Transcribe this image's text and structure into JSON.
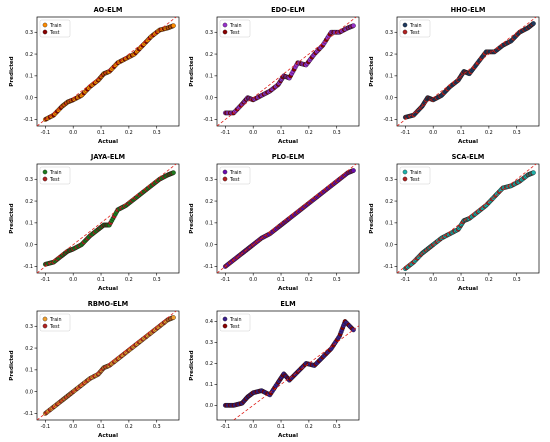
{
  "legend": {
    "train": "Train",
    "test": "Test"
  },
  "chart_data": [
    {
      "type": "scatter",
      "title": "AO-ELM",
      "xlabel": "Actual",
      "ylabel": "Predicted",
      "xlim": [
        -0.13,
        0.38
      ],
      "ylim": [
        -0.13,
        0.37
      ],
      "xticks": [
        -0.1,
        0.0,
        0.1,
        0.2,
        0.3
      ],
      "yticks": [
        -0.1,
        0.0,
        0.1,
        0.2,
        0.3
      ],
      "xtick_labels": [
        "-0.1",
        "0.0",
        "0.1",
        "0.2",
        "0.3"
      ],
      "ytick_labels": [
        "-0.1",
        "0.0",
        "0.1",
        "0.2",
        "0.3"
      ],
      "train_color": "#ff8c00",
      "test_color": "#8b0000",
      "fit_line": true,
      "curve": [
        [
          -0.1,
          -0.1
        ],
        [
          -0.07,
          -0.08
        ],
        [
          -0.04,
          -0.04
        ],
        [
          -0.02,
          -0.02
        ],
        [
          0.0,
          -0.01
        ],
        [
          0.03,
          0.01
        ],
        [
          0.06,
          0.05
        ],
        [
          0.09,
          0.08
        ],
        [
          0.11,
          0.11
        ],
        [
          0.13,
          0.12
        ],
        [
          0.16,
          0.16
        ],
        [
          0.19,
          0.18
        ],
        [
          0.22,
          0.2
        ],
        [
          0.25,
          0.24
        ],
        [
          0.28,
          0.28
        ],
        [
          0.31,
          0.31
        ],
        [
          0.34,
          0.32
        ],
        [
          0.36,
          0.33
        ]
      ]
    },
    {
      "type": "scatter",
      "title": "EDO-ELM",
      "xlabel": "Actual",
      "ylabel": "Predicted",
      "xlim": [
        -0.13,
        0.38
      ],
      "ylim": [
        -0.13,
        0.37
      ],
      "xticks": [
        -0.1,
        0.0,
        0.1,
        0.2,
        0.3
      ],
      "yticks": [
        -0.1,
        0.0,
        0.1,
        0.2,
        0.3
      ],
      "xtick_labels": [
        "-0.1",
        "0.0",
        "0.1",
        "0.2",
        "0.3"
      ],
      "ytick_labels": [
        "-0.1",
        "0.0",
        "0.1",
        "0.2",
        "0.3"
      ],
      "train_color": "#9932cc",
      "test_color": "#8b0000",
      "fit_line": true,
      "curve": [
        [
          -0.1,
          -0.07
        ],
        [
          -0.07,
          -0.07
        ],
        [
          -0.04,
          -0.03
        ],
        [
          -0.02,
          0.0
        ],
        [
          0.0,
          -0.01
        ],
        [
          0.03,
          0.01
        ],
        [
          0.06,
          0.03
        ],
        [
          0.09,
          0.06
        ],
        [
          0.11,
          0.1
        ],
        [
          0.13,
          0.09
        ],
        [
          0.16,
          0.16
        ],
        [
          0.19,
          0.15
        ],
        [
          0.22,
          0.2
        ],
        [
          0.25,
          0.24
        ],
        [
          0.28,
          0.3
        ],
        [
          0.31,
          0.3
        ],
        [
          0.34,
          0.32
        ],
        [
          0.36,
          0.33
        ]
      ]
    },
    {
      "type": "scatter",
      "title": "HHO-ELM",
      "xlabel": "Actual",
      "ylabel": "Predicted",
      "xlim": [
        -0.13,
        0.38
      ],
      "ylim": [
        -0.13,
        0.37
      ],
      "xticks": [
        -0.1,
        0.0,
        0.1,
        0.2,
        0.3
      ],
      "yticks": [
        -0.1,
        0.0,
        0.1,
        0.2,
        0.3
      ],
      "xtick_labels": [
        "-0.1",
        "0.0",
        "0.1",
        "0.2",
        "0.3"
      ],
      "ytick_labels": [
        "-0.1",
        "0.0",
        "0.1",
        "0.2",
        "0.3"
      ],
      "train_color": "#1f3a5f",
      "test_color": "#b22222",
      "fit_line": true,
      "curve": [
        [
          -0.1,
          -0.09
        ],
        [
          -0.07,
          -0.08
        ],
        [
          -0.04,
          -0.04
        ],
        [
          -0.02,
          0.0
        ],
        [
          0.0,
          -0.01
        ],
        [
          0.03,
          0.01
        ],
        [
          0.06,
          0.05
        ],
        [
          0.09,
          0.08
        ],
        [
          0.11,
          0.12
        ],
        [
          0.13,
          0.11
        ],
        [
          0.16,
          0.16
        ],
        [
          0.19,
          0.21
        ],
        [
          0.22,
          0.21
        ],
        [
          0.25,
          0.24
        ],
        [
          0.28,
          0.26
        ],
        [
          0.31,
          0.3
        ],
        [
          0.34,
          0.32
        ],
        [
          0.36,
          0.34
        ]
      ]
    },
    {
      "type": "scatter",
      "title": "JAYA-ELM",
      "xlabel": "Actual",
      "ylabel": "Predicted",
      "xlim": [
        -0.13,
        0.38
      ],
      "ylim": [
        -0.13,
        0.37
      ],
      "xticks": [
        -0.1,
        0.0,
        0.1,
        0.2,
        0.3
      ],
      "yticks": [
        -0.1,
        0.0,
        0.1,
        0.2,
        0.3
      ],
      "xtick_labels": [
        "-0.1",
        "0.0",
        "0.1",
        "0.2",
        "0.3"
      ],
      "ytick_labels": [
        "-0.1",
        "0.0",
        "0.1",
        "0.2",
        "0.3"
      ],
      "train_color": "#1e7b1e",
      "test_color": "#b22222",
      "fit_line": true,
      "curve": [
        [
          -0.1,
          -0.09
        ],
        [
          -0.07,
          -0.08
        ],
        [
          -0.04,
          -0.05
        ],
        [
          -0.02,
          -0.03
        ],
        [
          0.0,
          -0.02
        ],
        [
          0.03,
          0.0
        ],
        [
          0.06,
          0.04
        ],
        [
          0.09,
          0.07
        ],
        [
          0.11,
          0.09
        ],
        [
          0.13,
          0.09
        ],
        [
          0.16,
          0.16
        ],
        [
          0.19,
          0.18
        ],
        [
          0.22,
          0.21
        ],
        [
          0.25,
          0.24
        ],
        [
          0.28,
          0.27
        ],
        [
          0.31,
          0.3
        ],
        [
          0.34,
          0.32
        ],
        [
          0.36,
          0.33
        ]
      ]
    },
    {
      "type": "scatter",
      "title": "PLO-ELM",
      "xlabel": "Actual",
      "ylabel": "Predicted",
      "xlim": [
        -0.13,
        0.38
      ],
      "ylim": [
        -0.13,
        0.37
      ],
      "xticks": [
        -0.1,
        0.0,
        0.1,
        0.2,
        0.3
      ],
      "yticks": [
        -0.1,
        0.0,
        0.1,
        0.2,
        0.3
      ],
      "xtick_labels": [
        "-0.1",
        "0.0",
        "0.1",
        "0.2",
        "0.3"
      ],
      "ytick_labels": [
        "-0.1",
        "0.0",
        "0.1",
        "0.2",
        "0.3"
      ],
      "train_color": "#6a0dad",
      "test_color": "#b22222",
      "fit_line": true,
      "curve": [
        [
          -0.1,
          -0.1
        ],
        [
          -0.07,
          -0.07
        ],
        [
          -0.04,
          -0.04
        ],
        [
          -0.02,
          -0.02
        ],
        [
          0.0,
          0.0
        ],
        [
          0.03,
          0.03
        ],
        [
          0.06,
          0.05
        ],
        [
          0.09,
          0.08
        ],
        [
          0.11,
          0.1
        ],
        [
          0.13,
          0.12
        ],
        [
          0.16,
          0.15
        ],
        [
          0.19,
          0.18
        ],
        [
          0.22,
          0.21
        ],
        [
          0.25,
          0.24
        ],
        [
          0.28,
          0.27
        ],
        [
          0.31,
          0.3
        ],
        [
          0.34,
          0.33
        ],
        [
          0.36,
          0.34
        ]
      ]
    },
    {
      "type": "scatter",
      "title": "SCA-ELM",
      "xlabel": "Actual",
      "ylabel": "Predicted",
      "xlim": [
        -0.13,
        0.38
      ],
      "ylim": [
        -0.13,
        0.37
      ],
      "xticks": [
        -0.1,
        0.0,
        0.1,
        0.2,
        0.3
      ],
      "yticks": [
        -0.1,
        0.0,
        0.1,
        0.2,
        0.3
      ],
      "xtick_labels": [
        "-0.1",
        "0.0",
        "0.1",
        "0.2",
        "0.3"
      ],
      "ytick_labels": [
        "-0.1",
        "0.0",
        "0.1",
        "0.2",
        "0.3"
      ],
      "train_color": "#20b2aa",
      "test_color": "#b22222",
      "fit_line": true,
      "curve": [
        [
          -0.1,
          -0.11
        ],
        [
          -0.07,
          -0.08
        ],
        [
          -0.04,
          -0.04
        ],
        [
          -0.02,
          -0.02
        ],
        [
          0.0,
          0.0
        ],
        [
          0.03,
          0.03
        ],
        [
          0.06,
          0.05
        ],
        [
          0.09,
          0.07
        ],
        [
          0.11,
          0.11
        ],
        [
          0.13,
          0.12
        ],
        [
          0.16,
          0.15
        ],
        [
          0.19,
          0.18
        ],
        [
          0.22,
          0.22
        ],
        [
          0.25,
          0.26
        ],
        [
          0.28,
          0.27
        ],
        [
          0.31,
          0.29
        ],
        [
          0.34,
          0.32
        ],
        [
          0.36,
          0.33
        ]
      ]
    },
    {
      "type": "scatter",
      "title": "RBMO-ELM",
      "xlabel": "Actual",
      "ylabel": "Predicted",
      "xlim": [
        -0.13,
        0.38
      ],
      "ylim": [
        -0.13,
        0.37
      ],
      "xticks": [
        -0.1,
        0.0,
        0.1,
        0.2,
        0.3
      ],
      "yticks": [
        -0.1,
        0.0,
        0.1,
        0.2,
        0.3
      ],
      "xtick_labels": [
        "-0.1",
        "0.0",
        "0.1",
        "0.2",
        "0.3"
      ],
      "ytick_labels": [
        "-0.1",
        "0.0",
        "0.1",
        "0.2",
        "0.3"
      ],
      "train_color": "#f0a030",
      "test_color": "#b22222",
      "fit_line": true,
      "curve": [
        [
          -0.1,
          -0.1
        ],
        [
          -0.07,
          -0.07
        ],
        [
          -0.04,
          -0.04
        ],
        [
          -0.02,
          -0.02
        ],
        [
          0.0,
          0.0
        ],
        [
          0.03,
          0.03
        ],
        [
          0.06,
          0.06
        ],
        [
          0.09,
          0.08
        ],
        [
          0.11,
          0.11
        ],
        [
          0.13,
          0.12
        ],
        [
          0.16,
          0.15
        ],
        [
          0.19,
          0.18
        ],
        [
          0.22,
          0.21
        ],
        [
          0.25,
          0.24
        ],
        [
          0.28,
          0.27
        ],
        [
          0.31,
          0.3
        ],
        [
          0.34,
          0.33
        ],
        [
          0.36,
          0.34
        ]
      ]
    },
    {
      "type": "scatter",
      "title": "ELM",
      "xlabel": "Actual",
      "ylabel": "Predicted",
      "xlim": [
        -0.13,
        0.38
      ],
      "ylim": [
        -0.07,
        0.45
      ],
      "xticks": [
        -0.1,
        0.0,
        0.1,
        0.2,
        0.3
      ],
      "yticks": [
        0.0,
        0.1,
        0.2,
        0.3,
        0.4
      ],
      "xtick_labels": [
        "-0.1",
        "0.0",
        "0.1",
        "0.2",
        "0.3"
      ],
      "ytick_labels": [
        "0.0",
        "0.1",
        "0.2",
        "0.3",
        "0.4"
      ],
      "train_color": "#3b1e8c",
      "test_color": "#8b0000",
      "fit_line": true,
      "curve": [
        [
          -0.1,
          0.0
        ],
        [
          -0.07,
          0.0
        ],
        [
          -0.04,
          0.01
        ],
        [
          -0.02,
          0.04
        ],
        [
          0.0,
          0.06
        ],
        [
          0.03,
          0.07
        ],
        [
          0.06,
          0.05
        ],
        [
          0.09,
          0.11
        ],
        [
          0.11,
          0.15
        ],
        [
          0.13,
          0.12
        ],
        [
          0.16,
          0.16
        ],
        [
          0.19,
          0.2
        ],
        [
          0.22,
          0.19
        ],
        [
          0.25,
          0.23
        ],
        [
          0.28,
          0.27
        ],
        [
          0.31,
          0.33
        ],
        [
          0.33,
          0.4
        ],
        [
          0.36,
          0.36
        ]
      ]
    }
  ]
}
